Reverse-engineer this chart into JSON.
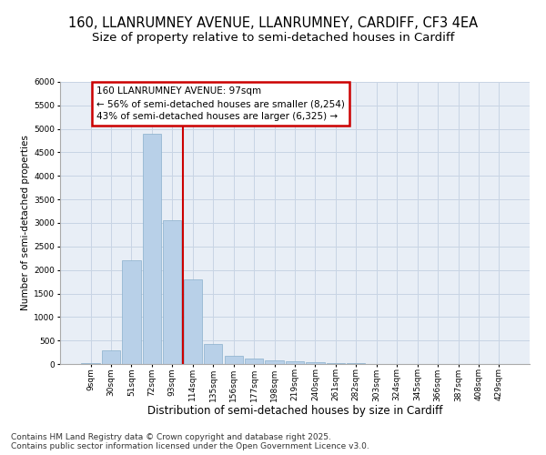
{
  "title_line1": "160, LLANRUMNEY AVENUE, LLANRUMNEY, CARDIFF, CF3 4EA",
  "title_line2": "Size of property relative to semi-detached houses in Cardiff",
  "xlabel": "Distribution of semi-detached houses by size in Cardiff",
  "ylabel": "Number of semi-detached properties",
  "categories": [
    "9sqm",
    "30sqm",
    "51sqm",
    "72sqm",
    "93sqm",
    "114sqm",
    "135sqm",
    "156sqm",
    "177sqm",
    "198sqm",
    "219sqm",
    "240sqm",
    "261sqm",
    "282sqm",
    "303sqm",
    "324sqm",
    "345sqm",
    "366sqm",
    "387sqm",
    "408sqm",
    "429sqm"
  ],
  "values": [
    25,
    300,
    2200,
    4900,
    3050,
    1800,
    420,
    175,
    125,
    80,
    50,
    30,
    20,
    12,
    8,
    5,
    4,
    3,
    2,
    2,
    1
  ],
  "bar_color": "#b8d0e8",
  "bar_edge_color": "#8ab0cc",
  "grid_color": "#c8d4e4",
  "bg_color": "#e8eef6",
  "vline_color": "#cc0000",
  "annotation_text": "160 LLANRUMNEY AVENUE: 97sqm\n← 56% of semi-detached houses are smaller (8,254)\n43% of semi-detached houses are larger (6,325) →",
  "annotation_box_color": "#cc0000",
  "ylim": [
    0,
    6000
  ],
  "yticks": [
    0,
    500,
    1000,
    1500,
    2000,
    2500,
    3000,
    3500,
    4000,
    4500,
    5000,
    5500,
    6000
  ],
  "footer_text": "Contains HM Land Registry data © Crown copyright and database right 2025.\nContains public sector information licensed under the Open Government Licence v3.0.",
  "title_fontsize": 10.5,
  "subtitle_fontsize": 9.5,
  "xlabel_fontsize": 8.5,
  "ylabel_fontsize": 7.5,
  "tick_fontsize": 6.5,
  "annotation_fontsize": 7.5,
  "footer_fontsize": 6.5
}
